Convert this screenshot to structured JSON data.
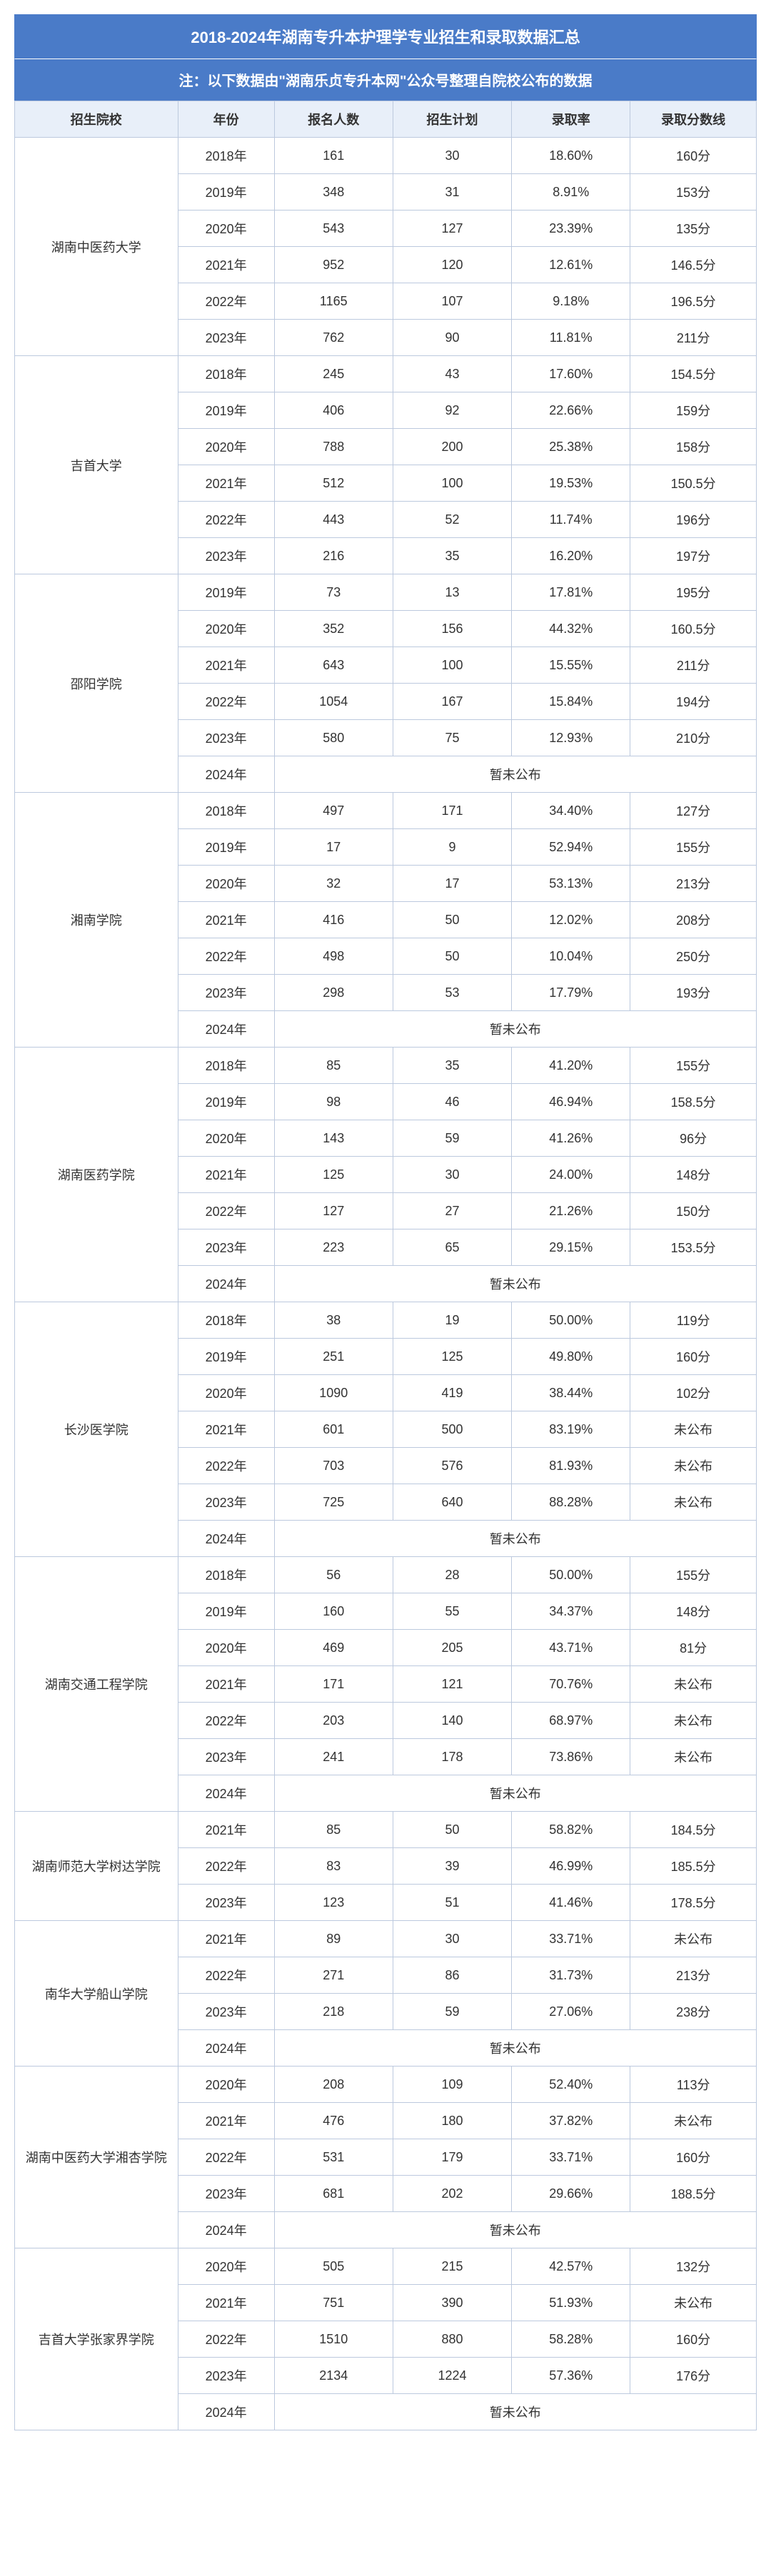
{
  "title": "2018-2024年湖南专升本护理学专业招生和录取数据汇总",
  "note": "注：以下数据由\"湖南乐贞专升本网\"公众号整理自院校公布的数据",
  "headers": {
    "school": "招生院校",
    "year": "年份",
    "applicants": "报名人数",
    "plan": "招生计划",
    "rate": "录取率",
    "score": "录取分数线"
  },
  "pending": "暂未公布",
  "not_published": "未公布",
  "schools": [
    {
      "name": "湖南中医药大学",
      "rows": [
        {
          "year": "2018年",
          "applicants": "161",
          "plan": "30",
          "rate": "18.60%",
          "score": "160分"
        },
        {
          "year": "2019年",
          "applicants": "348",
          "plan": "31",
          "rate": "8.91%",
          "score": "153分"
        },
        {
          "year": "2020年",
          "applicants": "543",
          "plan": "127",
          "rate": "23.39%",
          "score": "135分"
        },
        {
          "year": "2021年",
          "applicants": "952",
          "plan": "120",
          "rate": "12.61%",
          "score": "146.5分"
        },
        {
          "year": "2022年",
          "applicants": "1165",
          "plan": "107",
          "rate": "9.18%",
          "score": "196.5分"
        },
        {
          "year": "2023年",
          "applicants": "762",
          "plan": "90",
          "rate": "11.81%",
          "score": "211分"
        }
      ],
      "pending_year": null
    },
    {
      "name": "吉首大学",
      "rows": [
        {
          "year": "2018年",
          "applicants": "245",
          "plan": "43",
          "rate": "17.60%",
          "score": "154.5分"
        },
        {
          "year": "2019年",
          "applicants": "406",
          "plan": "92",
          "rate": "22.66%",
          "score": "159分"
        },
        {
          "year": "2020年",
          "applicants": "788",
          "plan": "200",
          "rate": "25.38%",
          "score": "158分"
        },
        {
          "year": "2021年",
          "applicants": "512",
          "plan": "100",
          "rate": "19.53%",
          "score": "150.5分"
        },
        {
          "year": "2022年",
          "applicants": "443",
          "plan": "52",
          "rate": "11.74%",
          "score": "196分"
        },
        {
          "year": "2023年",
          "applicants": "216",
          "plan": "35",
          "rate": "16.20%",
          "score": "197分"
        }
      ],
      "pending_year": null
    },
    {
      "name": "邵阳学院",
      "rows": [
        {
          "year": "2019年",
          "applicants": "73",
          "plan": "13",
          "rate": "17.81%",
          "score": "195分"
        },
        {
          "year": "2020年",
          "applicants": "352",
          "plan": "156",
          "rate": "44.32%",
          "score": "160.5分"
        },
        {
          "year": "2021年",
          "applicants": "643",
          "plan": "100",
          "rate": "15.55%",
          "score": "211分"
        },
        {
          "year": "2022年",
          "applicants": "1054",
          "plan": "167",
          "rate": "15.84%",
          "score": "194分"
        },
        {
          "year": "2023年",
          "applicants": "580",
          "plan": "75",
          "rate": "12.93%",
          "score": "210分"
        }
      ],
      "pending_year": "2024年"
    },
    {
      "name": "湘南学院",
      "rows": [
        {
          "year": "2018年",
          "applicants": "497",
          "plan": "171",
          "rate": "34.40%",
          "score": "127分"
        },
        {
          "year": "2019年",
          "applicants": "17",
          "plan": "9",
          "rate": "52.94%",
          "score": "155分"
        },
        {
          "year": "2020年",
          "applicants": "32",
          "plan": "17",
          "rate": "53.13%",
          "score": "213分"
        },
        {
          "year": "2021年",
          "applicants": "416",
          "plan": "50",
          "rate": "12.02%",
          "score": "208分"
        },
        {
          "year": "2022年",
          "applicants": "498",
          "plan": "50",
          "rate": "10.04%",
          "score": "250分"
        },
        {
          "year": "2023年",
          "applicants": "298",
          "plan": "53",
          "rate": "17.79%",
          "score": "193分"
        }
      ],
      "pending_year": "2024年"
    },
    {
      "name": "湖南医药学院",
      "rows": [
        {
          "year": "2018年",
          "applicants": "85",
          "plan": "35",
          "rate": "41.20%",
          "score": "155分"
        },
        {
          "year": "2019年",
          "applicants": "98",
          "plan": "46",
          "rate": "46.94%",
          "score": "158.5分"
        },
        {
          "year": "2020年",
          "applicants": "143",
          "plan": "59",
          "rate": "41.26%",
          "score": "96分"
        },
        {
          "year": "2021年",
          "applicants": "125",
          "plan": "30",
          "rate": "24.00%",
          "score": "148分"
        },
        {
          "year": "2022年",
          "applicants": "127",
          "plan": "27",
          "rate": "21.26%",
          "score": "150分"
        },
        {
          "year": "2023年",
          "applicants": "223",
          "plan": "65",
          "rate": "29.15%",
          "score": "153.5分"
        }
      ],
      "pending_year": "2024年"
    },
    {
      "name": "长沙医学院",
      "rows": [
        {
          "year": "2018年",
          "applicants": "38",
          "plan": "19",
          "rate": "50.00%",
          "score": "119分"
        },
        {
          "year": "2019年",
          "applicants": "251",
          "plan": "125",
          "rate": "49.80%",
          "score": "160分"
        },
        {
          "year": "2020年",
          "applicants": "1090",
          "plan": "419",
          "rate": "38.44%",
          "score": "102分"
        },
        {
          "year": "2021年",
          "applicants": "601",
          "plan": "500",
          "rate": "83.19%",
          "score": "未公布"
        },
        {
          "year": "2022年",
          "applicants": "703",
          "plan": "576",
          "rate": "81.93%",
          "score": "未公布"
        },
        {
          "year": "2023年",
          "applicants": "725",
          "plan": "640",
          "rate": "88.28%",
          "score": "未公布"
        }
      ],
      "pending_year": "2024年"
    },
    {
      "name": "湖南交通工程学院",
      "rows": [
        {
          "year": "2018年",
          "applicants": "56",
          "plan": "28",
          "rate": "50.00%",
          "score": "155分"
        },
        {
          "year": "2019年",
          "applicants": "160",
          "plan": "55",
          "rate": "34.37%",
          "score": "148分"
        },
        {
          "year": "2020年",
          "applicants": "469",
          "plan": "205",
          "rate": "43.71%",
          "score": "81分"
        },
        {
          "year": "2021年",
          "applicants": "171",
          "plan": "121",
          "rate": "70.76%",
          "score": "未公布"
        },
        {
          "year": "2022年",
          "applicants": "203",
          "plan": "140",
          "rate": "68.97%",
          "score": "未公布"
        },
        {
          "year": "2023年",
          "applicants": "241",
          "plan": "178",
          "rate": "73.86%",
          "score": "未公布"
        }
      ],
      "pending_year": "2024年"
    },
    {
      "name": "湖南师范大学树达学院",
      "rows": [
        {
          "year": "2021年",
          "applicants": "85",
          "plan": "50",
          "rate": "58.82%",
          "score": "184.5分"
        },
        {
          "year": "2022年",
          "applicants": "83",
          "plan": "39",
          "rate": "46.99%",
          "score": "185.5分"
        },
        {
          "year": "2023年",
          "applicants": "123",
          "plan": "51",
          "rate": "41.46%",
          "score": "178.5分"
        }
      ],
      "pending_year": null
    },
    {
      "name": "南华大学船山学院",
      "rows": [
        {
          "year": "2021年",
          "applicants": "89",
          "plan": "30",
          "rate": "33.71%",
          "score": "未公布"
        },
        {
          "year": "2022年",
          "applicants": "271",
          "plan": "86",
          "rate": "31.73%",
          "score": "213分"
        },
        {
          "year": "2023年",
          "applicants": "218",
          "plan": "59",
          "rate": "27.06%",
          "score": "238分"
        }
      ],
      "pending_year": "2024年"
    },
    {
      "name": "湖南中医药大学湘杏学院",
      "rows": [
        {
          "year": "2020年",
          "applicants": "208",
          "plan": "109",
          "rate": "52.40%",
          "score": "113分"
        },
        {
          "year": "2021年",
          "applicants": "476",
          "plan": "180",
          "rate": "37.82%",
          "score": "未公布"
        },
        {
          "year": "2022年",
          "applicants": "531",
          "plan": "179",
          "rate": "33.71%",
          "score": "160分"
        },
        {
          "year": "2023年",
          "applicants": "681",
          "plan": "202",
          "rate": "29.66%",
          "score": "188.5分"
        }
      ],
      "pending_year": "2024年"
    },
    {
      "name": "吉首大学张家界学院",
      "rows": [
        {
          "year": "2020年",
          "applicants": "505",
          "plan": "215",
          "rate": "42.57%",
          "score": "132分"
        },
        {
          "year": "2021年",
          "applicants": "751",
          "plan": "390",
          "rate": "51.93%",
          "score": "未公布"
        },
        {
          "year": "2022年",
          "applicants": "1510",
          "plan": "880",
          "rate": "58.28%",
          "score": "160分"
        },
        {
          "year": "2023年",
          "applicants": "2134",
          "plan": "1224",
          "rate": "57.36%",
          "score": "176分"
        }
      ],
      "pending_year": "2024年"
    }
  ]
}
